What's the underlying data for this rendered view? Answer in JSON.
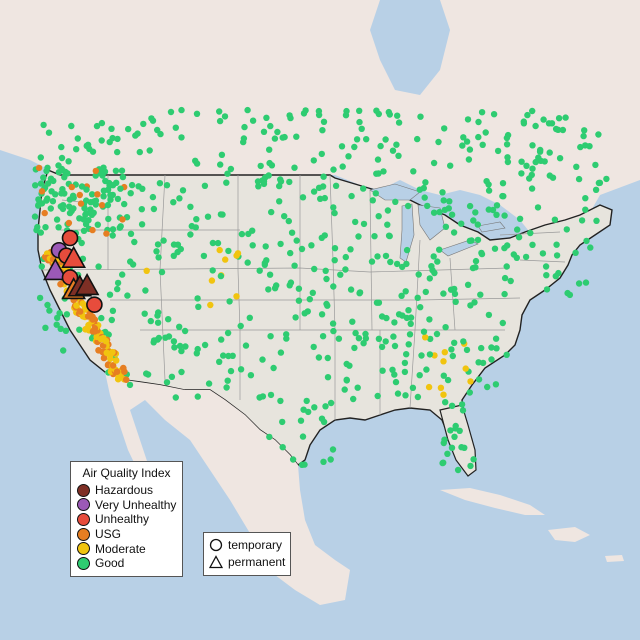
{
  "legend": {
    "title": "Air Quality Index",
    "categories": [
      {
        "label": "Hazardous",
        "color": "#7e2f25"
      },
      {
        "label": "Very Unhealthy",
        "color": "#9b59b6"
      },
      {
        "label": "Unhealthy",
        "color": "#e74c3c"
      },
      {
        "label": "USG",
        "color": "#e67e22"
      },
      {
        "label": "Moderate",
        "color": "#f1c40f"
      },
      {
        "label": "Good",
        "color": "#2ecc71"
      }
    ]
  },
  "type_legend": {
    "temporary_label": "temporary",
    "permanent_label": "permanent",
    "temporary_icon": "circle-icon",
    "permanent_icon": "triangle-icon"
  },
  "map_data": {
    "region": "Continental United States",
    "highlight_monitors": [
      {
        "lon": -121.3,
        "lat": 41.5,
        "category": "Unhealthy",
        "type": "temporary"
      },
      {
        "lon": -122.2,
        "lat": 40.6,
        "category": "Very Unhealthy",
        "type": "temporary"
      },
      {
        "lon": -121.6,
        "lat": 40.2,
        "category": "Unhealthy",
        "type": "temporary"
      },
      {
        "lon": -122.5,
        "lat": 39.1,
        "category": "Very Unhealthy",
        "type": "permanent"
      },
      {
        "lon": -121.3,
        "lat": 38.6,
        "category": "Unhealthy",
        "type": "temporary"
      },
      {
        "lon": -121.0,
        "lat": 37.7,
        "category": "USG",
        "type": "permanent"
      },
      {
        "lon": -120.5,
        "lat": 37.9,
        "category": "Hazardous",
        "type": "permanent"
      },
      {
        "lon": -119.9,
        "lat": 38.0,
        "category": "Hazardous",
        "type": "permanent"
      },
      {
        "lon": -119.3,
        "lat": 36.6,
        "category": "Unhealthy",
        "type": "temporary"
      },
      {
        "lon": -121.0,
        "lat": 40.0,
        "category": "Unhealthy",
        "type": "permanent"
      }
    ]
  }
}
